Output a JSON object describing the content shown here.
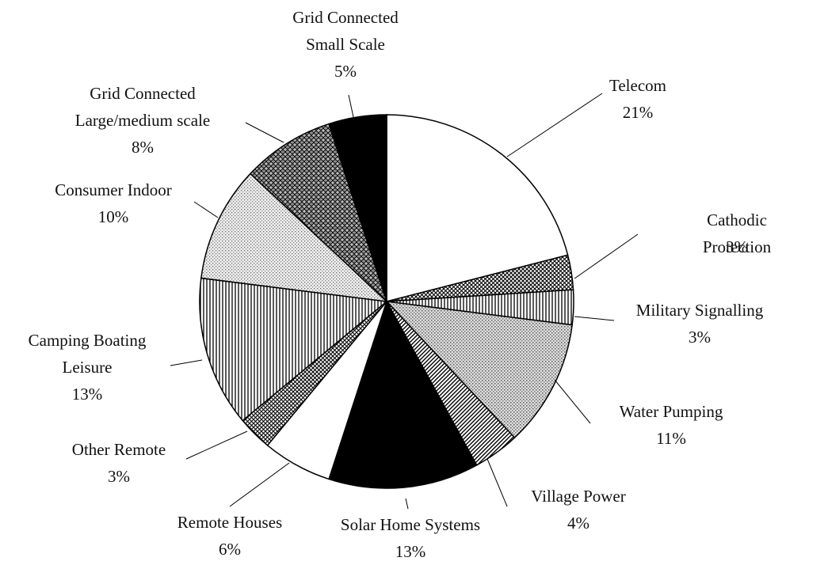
{
  "chart_data": {
    "type": "pie",
    "categories": [
      "Telecom",
      "Cathodic Protection",
      "Military Signalling",
      "Water Pumping",
      "Village Power",
      "Solar Home Systems",
      "Remote Houses",
      "Other Remote",
      "Camping Boating\nLeisure",
      "Consumer Indoor",
      "Grid Connected\nLarge/medium scale",
      "Grid Connected\nSmall Scale"
    ],
    "values": [
      21,
      3,
      3,
      11,
      4,
      13,
      6,
      3,
      13,
      10,
      8,
      5
    ],
    "value_labels": [
      "21%",
      "3%",
      "3%",
      "11%",
      "4%",
      "13%",
      "6%",
      "3%",
      "13%",
      "10%",
      "8%",
      "5%"
    ],
    "colors": [
      "#ffffff",
      "url(#p-cross)",
      "url(#p-vert)",
      "url(#p-dots)",
      "url(#p-diag)",
      "#000000",
      "#ffffff",
      "url(#p-cross)",
      "url(#p-vert)",
      "url(#p-dots2)",
      "url(#p-xhatch)",
      "#000000"
    ],
    "start_angle": 0,
    "direction": "clockwise"
  }
}
